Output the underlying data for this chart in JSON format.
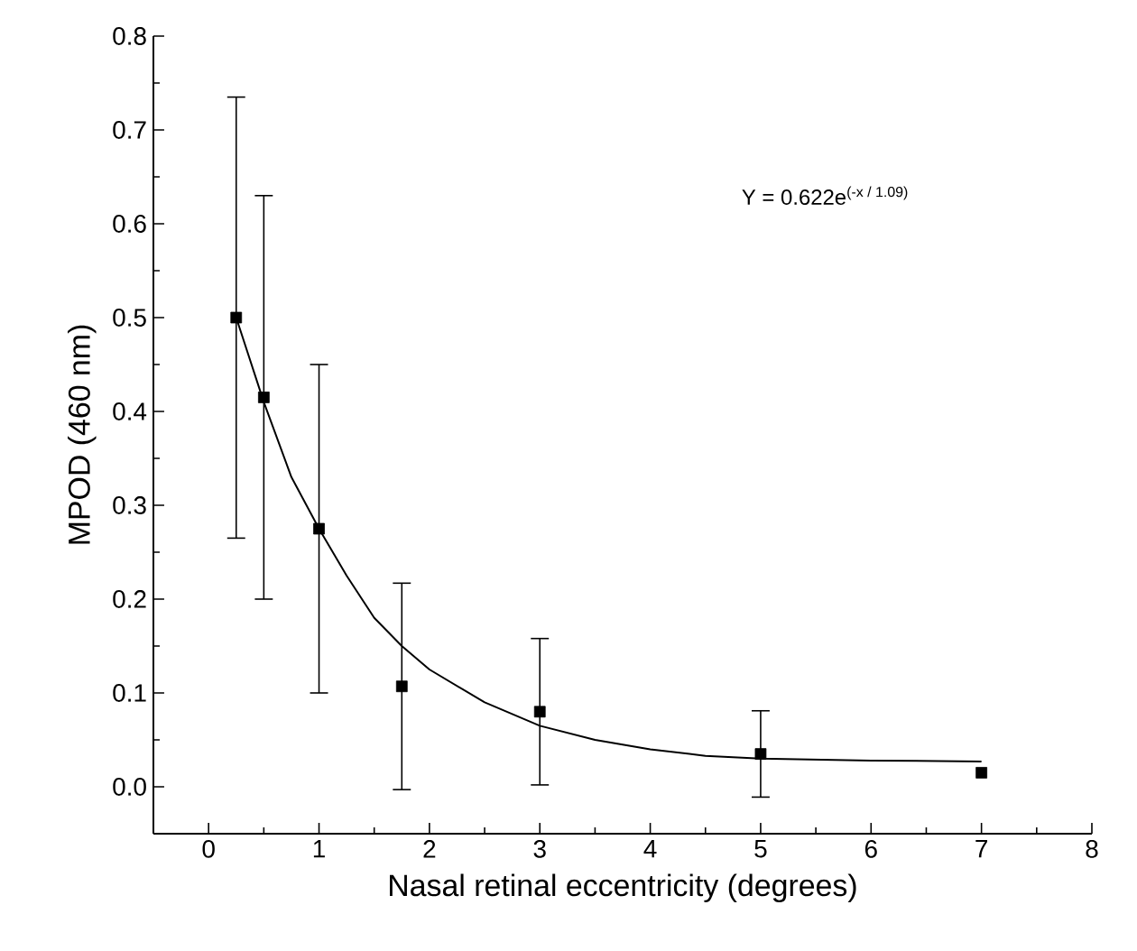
{
  "chart_data": {
    "type": "scatter",
    "xlabel": "Nasal retinal eccentricity (degrees)",
    "ylabel": "MPOD (460 nm)",
    "annotations": [
      "Y = 0.622e$^{(-x / 1.09)}$"
    ],
    "xlim": [
      -0.5,
      8
    ],
    "xticks": [
      0,
      1,
      2,
      3,
      4,
      5,
      6,
      7,
      8
    ],
    "ylim": [
      -0.05,
      0.8
    ],
    "yticks": [
      {
        "value": 0,
        "label": "0.0"
      },
      0.1,
      0.2,
      0.3,
      0.4,
      0.5,
      0.6,
      0.7,
      0.8
    ],
    "series": [
      {
        "marker": "square",
        "color": "#000000",
        "x": [
          0.25,
          0.5,
          1,
          1.75,
          3,
          5,
          7
        ],
        "values": [
          0.5,
          0.415,
          0.275,
          0.107,
          0.08,
          0.035,
          0.015
        ],
        "errors": [
          0.235,
          0.215,
          0.175,
          0.11,
          0.078,
          0.046,
          null
        ]
      },
      {
        "type": "line",
        "color": "#000000",
        "x": [
          0.25,
          0.5,
          0.75,
          1,
          1.25,
          1.5,
          1.75,
          2,
          2.5,
          3,
          3.5,
          4,
          4.5,
          5,
          6,
          7
        ],
        "values": [
          0.5,
          0.41,
          0.33,
          0.275,
          0.225,
          0.18,
          0.15,
          0.125,
          0.09,
          0.065,
          0.05,
          0.04,
          0.033,
          0.03,
          0.028,
          0.027
        ]
      }
    ]
  }
}
